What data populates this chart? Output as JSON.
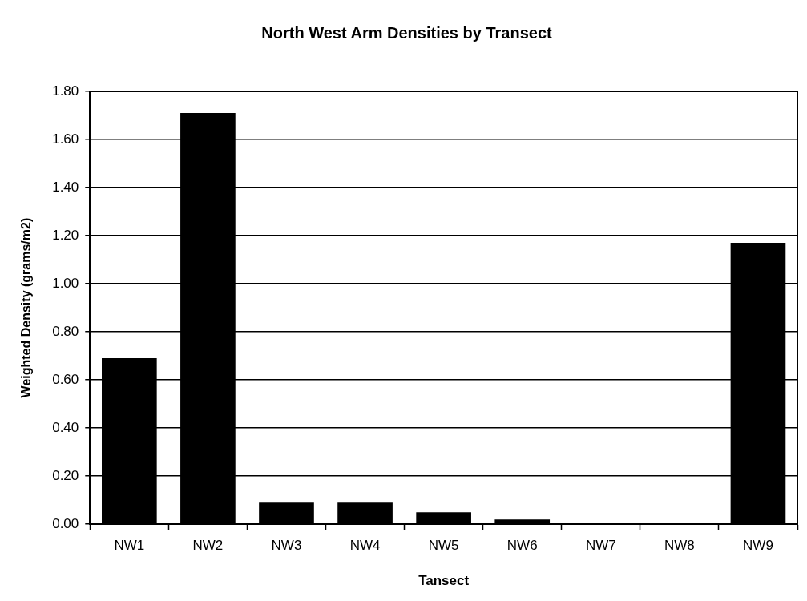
{
  "chart_data": {
    "type": "bar",
    "title": "North West Arm Densities by Transect",
    "xlabel": "Tansect",
    "ylabel": "Weighted Density (grams/m2)",
    "categories": [
      "NW1",
      "NW2",
      "NW3",
      "NW4",
      "NW5",
      "NW6",
      "NW7",
      "NW8",
      "NW9"
    ],
    "values": [
      0.69,
      1.71,
      0.09,
      0.09,
      0.05,
      0.02,
      0,
      0,
      1.17
    ],
    "color": "#000000",
    "ylim": [
      0,
      1.8
    ],
    "yticks": [
      {
        "value": 0,
        "label": "0.00"
      },
      {
        "value": 0.2,
        "label": "0.20"
      },
      {
        "value": 0.4,
        "label": "0.40"
      },
      {
        "value": 0.6,
        "label": "0.60"
      },
      {
        "value": 0.8,
        "label": "0.80"
      },
      {
        "value": 1,
        "label": "1.00"
      },
      {
        "value": 1.2,
        "label": "1.20"
      },
      {
        "value": 1.4,
        "label": "1.40"
      },
      {
        "value": 1.6,
        "label": "1.60"
      },
      {
        "value": 1.8,
        "label": "1.80"
      }
    ],
    "grid": "y",
    "legend": false
  }
}
